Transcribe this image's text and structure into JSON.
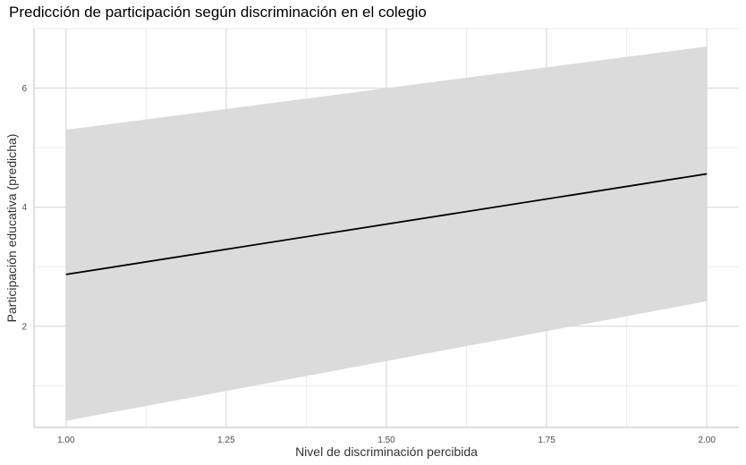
{
  "chart_data": {
    "type": "line",
    "title": "Predicción de participación según discriminación en el colegio",
    "xlabel": "Nivel de discriminación percibida",
    "ylabel": "Participación educativa (predicha)",
    "xlim": [
      0.95,
      2.05
    ],
    "ylim": [
      0.3,
      7.0
    ],
    "x_ticks": [
      1.0,
      1.25,
      1.5,
      1.75,
      2.0
    ],
    "x_tick_labels": [
      "1.00",
      "1.25",
      "1.50",
      "1.75",
      "2.00"
    ],
    "y_ticks": [
      2,
      4,
      6
    ],
    "y_tick_labels": [
      "2",
      "4",
      "6"
    ],
    "grid": true,
    "series": [
      {
        "x": [
          1.0,
          2.0
        ],
        "y": [
          2.87,
          4.56
        ],
        "lower": [
          0.41,
          2.42
        ],
        "upper": [
          5.3,
          6.7
        ],
        "color": "#000000",
        "band_color": "#d9d9d9"
      }
    ]
  }
}
